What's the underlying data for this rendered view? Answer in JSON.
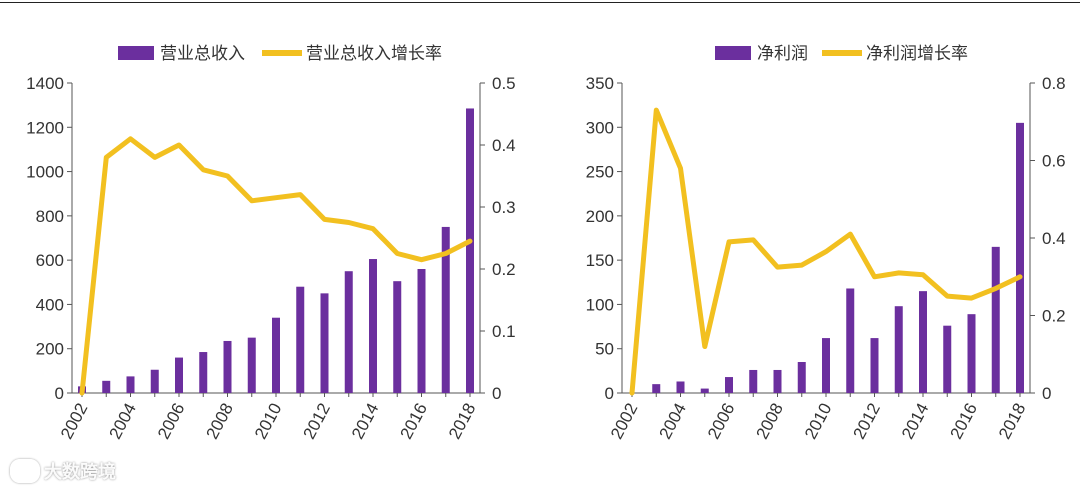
{
  "watermark": "大数跨境",
  "colors": {
    "bar": "#6b2f9e",
    "line": "#f2c020",
    "axis": "#555555",
    "text": "#333333"
  },
  "chart_data": [
    {
      "type": "bar",
      "combo": "bar+line",
      "categories": [
        "2002",
        "2003",
        "2004",
        "2005",
        "2006",
        "2007",
        "2008",
        "2009",
        "2010",
        "2011",
        "2012",
        "2013",
        "2014",
        "2015",
        "2016",
        "2017",
        "2018"
      ],
      "x_tick_labels": [
        "2002",
        "2004",
        "2006",
        "2008",
        "2010",
        "2012",
        "2014",
        "2016",
        "2018"
      ],
      "series": [
        {
          "name": "营业总收入",
          "type": "bar",
          "axis": "left",
          "values": [
            30,
            55,
            75,
            105,
            160,
            185,
            235,
            250,
            340,
            480,
            450,
            550,
            605,
            505,
            560,
            750,
            1285
          ]
        },
        {
          "name": "营业总收入增长率",
          "type": "line",
          "axis": "right",
          "values": [
            0,
            0.38,
            0.41,
            0.38,
            0.4,
            0.36,
            0.35,
            0.31,
            0.315,
            0.32,
            0.28,
            0.275,
            0.265,
            0.225,
            0.215,
            0.225,
            0.245
          ]
        }
      ],
      "y_left": {
        "lim": [
          0,
          1400
        ],
        "ticks": [
          0,
          200,
          400,
          600,
          800,
          1000,
          1200,
          1400
        ]
      },
      "y_right": {
        "lim": [
          0,
          0.5
        ],
        "ticks": [
          0,
          0.1,
          0.2,
          0.3,
          0.4,
          0.5
        ]
      },
      "legend": "top",
      "grid": false
    },
    {
      "type": "bar",
      "combo": "bar+line",
      "categories": [
        "2002",
        "2003",
        "2004",
        "2005",
        "2006",
        "2007",
        "2008",
        "2009",
        "2010",
        "2011",
        "2012",
        "2013",
        "2014",
        "2015",
        "2016",
        "2017",
        "2018"
      ],
      "x_tick_labels": [
        "2002",
        "2004",
        "2006",
        "2008",
        "2010",
        "2012",
        "2014",
        "2016",
        "2018"
      ],
      "series": [
        {
          "name": "净利润",
          "type": "bar",
          "axis": "left",
          "values": [
            0,
            10,
            13,
            5,
            18,
            26,
            26,
            35,
            62,
            118,
            62,
            98,
            115,
            76,
            89,
            165,
            305
          ]
        },
        {
          "name": "净利润增长率",
          "type": "line",
          "axis": "right",
          "values": [
            0,
            0.73,
            0.58,
            0.12,
            0.39,
            0.395,
            0.325,
            0.33,
            0.365,
            0.41,
            0.3,
            0.31,
            0.305,
            0.25,
            0.245,
            0.27,
            0.3
          ]
        }
      ],
      "y_left": {
        "lim": [
          0,
          350
        ],
        "ticks": [
          0,
          50,
          100,
          150,
          200,
          250,
          300,
          350
        ]
      },
      "y_right": {
        "lim": [
          0,
          0.8
        ],
        "ticks": [
          0,
          0.2,
          0.4,
          0.6,
          0.8
        ]
      },
      "legend": "top",
      "grid": false
    }
  ]
}
